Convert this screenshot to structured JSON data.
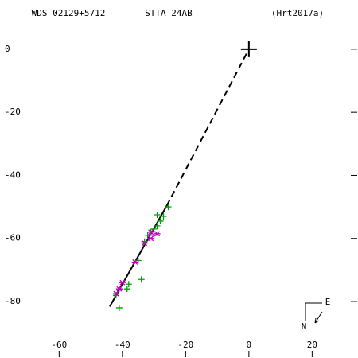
{
  "chart_data": {
    "type": "scatter",
    "title": "WDS 02129+5712",
    "subtitle": "STTA 24AB",
    "annotation": "(Hrt2017a)",
    "xlim": [
      -78.7,
      34.5
    ],
    "ylim": [
      -97.9,
      15.6
    ],
    "xticks": [
      -60,
      -40,
      -20,
      0,
      20
    ],
    "yticks": [
      0,
      -20,
      -40,
      -60,
      -80
    ],
    "series": [
      {
        "marker": "plus",
        "color": "#00a000",
        "x": [
          -25.5,
          -29,
          -27,
          -28,
          -29,
          -30,
          -31,
          -32,
          -30,
          -34,
          -38,
          -38.5,
          -41,
          -42,
          -41,
          -35,
          -33
        ],
        "y": [
          -50,
          -52.5,
          -53,
          -54.5,
          -56,
          -57,
          -58,
          -59,
          -59,
          -73,
          -74.5,
          -76,
          -76,
          -78,
          -82,
          -67,
          -61
        ]
      },
      {
        "marker": "star",
        "color": "#c000c0",
        "x": [
          -29,
          -31,
          -33,
          -36,
          -40,
          -41,
          -42,
          -31
        ],
        "y": [
          -58.5,
          -60,
          -61.5,
          -67.5,
          -74,
          -76,
          -77.5,
          -58
        ]
      }
    ],
    "lines": [
      {
        "style": "solid",
        "color": "#000000",
        "x": [
          -44,
          -26
        ],
        "y": [
          -81.6,
          -49.7
        ]
      },
      {
        "style": "dashed",
        "color": "#000000",
        "x": [
          -26,
          0
        ],
        "y": [
          -49.7,
          0
        ]
      }
    ],
    "primary": {
      "x": 0,
      "y": 0
    },
    "compass": {
      "east": "E",
      "north": "N"
    }
  }
}
